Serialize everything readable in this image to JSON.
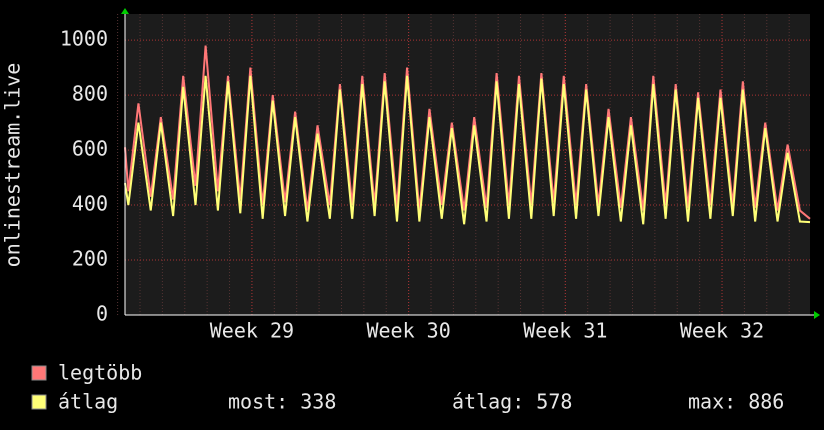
{
  "chart_data": {
    "type": "line",
    "ylabel": "onlinestream.live",
    "xlim": [
      0,
      30.6
    ],
    "xticks": [
      {
        "value": 5.67,
        "label": "Week 29"
      },
      {
        "value": 12.67,
        "label": "Week 30"
      },
      {
        "value": 19.67,
        "label": "Week 31"
      },
      {
        "value": 26.67,
        "label": "Week 32"
      }
    ],
    "ylim": [
      0,
      1095
    ],
    "yticks": [
      0,
      200,
      400,
      600,
      800,
      1000
    ],
    "grid": true,
    "x": [
      0,
      0.15,
      0.6,
      1.15,
      1.6,
      2.15,
      2.6,
      3.15,
      3.6,
      4.15,
      4.6,
      5.15,
      5.6,
      6.15,
      6.6,
      7.15,
      7.6,
      8.15,
      8.6,
      9.15,
      9.6,
      10.15,
      10.6,
      11.15,
      11.6,
      12.15,
      12.6,
      13.15,
      13.6,
      14.15,
      14.6,
      15.15,
      15.6,
      16.15,
      16.6,
      17.15,
      17.6,
      18.15,
      18.6,
      19.15,
      19.6,
      20.15,
      20.6,
      21.15,
      21.6,
      22.15,
      22.6,
      23.15,
      23.6,
      24.15,
      24.6,
      25.15,
      25.6,
      26.15,
      26.6,
      27.15,
      27.6,
      28.15,
      28.6,
      29.15,
      29.6,
      30.15,
      30.6
    ],
    "series": [
      {
        "name": "legtöbb",
        "color": "#ff7777",
        "values": [
          610,
          450,
          770,
          430,
          720,
          420,
          870,
          470,
          980,
          450,
          870,
          420,
          900,
          400,
          800,
          410,
          740,
          380,
          690,
          400,
          840,
          400,
          870,
          400,
          880,
          390,
          900,
          380,
          750,
          400,
          700,
          380,
          720,
          390,
          880,
          400,
          870,
          400,
          880,
          410,
          870,
          400,
          840,
          400,
          750,
          390,
          720,
          380,
          870,
          400,
          840,
          390,
          810,
          400,
          820,
          400,
          850,
          390,
          700,
          380,
          620,
          380,
          350
        ]
      },
      {
        "name": "átlag",
        "color": "#ffff77",
        "values": [
          480,
          400,
          700,
          380,
          700,
          360,
          830,
          400,
          870,
          380,
          850,
          370,
          870,
          350,
          780,
          360,
          720,
          340,
          660,
          350,
          820,
          350,
          840,
          360,
          850,
          340,
          870,
          340,
          720,
          350,
          680,
          330,
          690,
          340,
          850,
          350,
          840,
          350,
          860,
          360,
          840,
          350,
          820,
          360,
          720,
          340,
          690,
          330,
          840,
          350,
          820,
          340,
          790,
          350,
          790,
          360,
          820,
          340,
          680,
          340,
          590,
          340,
          338
        ]
      }
    ],
    "stats": [
      "most: 338",
      "átlag: 578",
      "max: 886"
    ]
  }
}
